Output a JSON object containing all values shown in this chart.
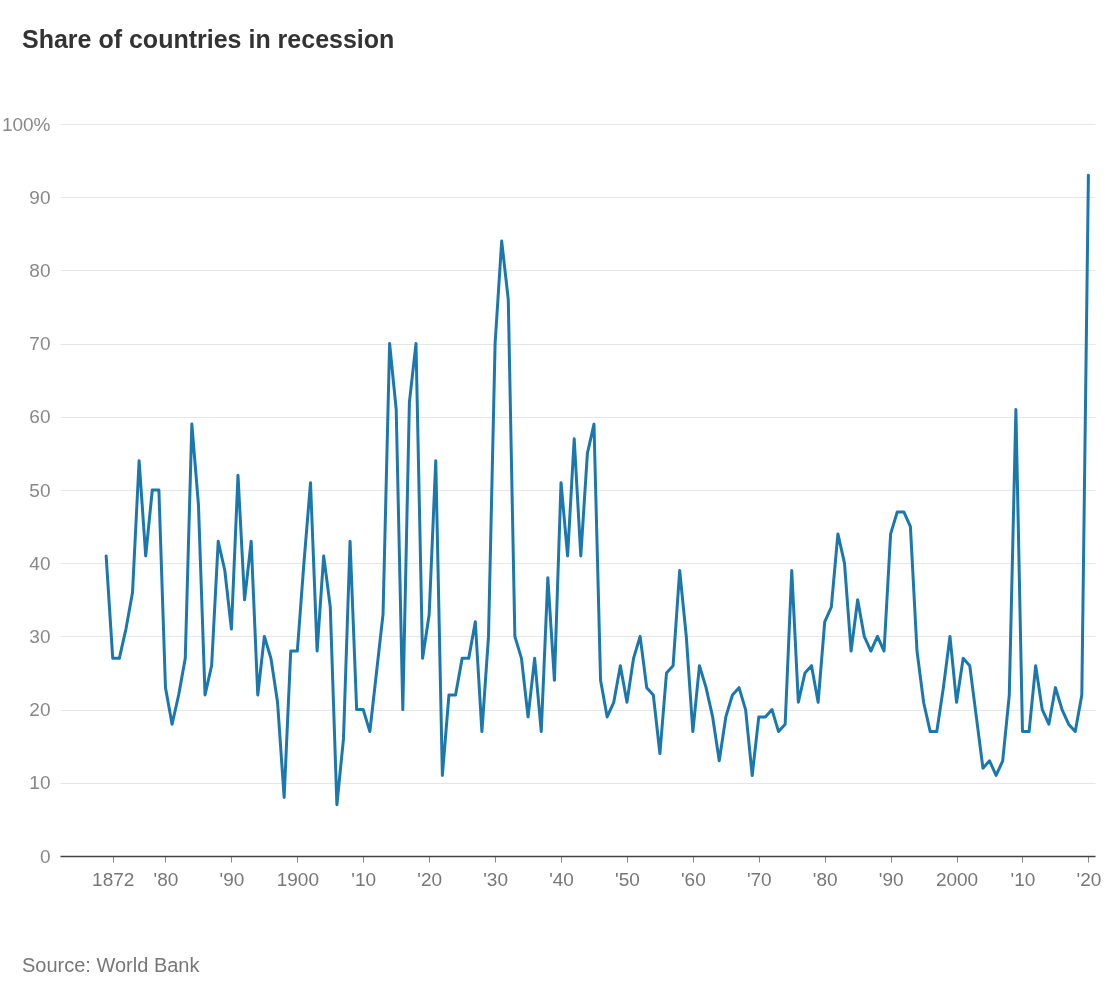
{
  "chart_data": {
    "type": "line",
    "title": "Share of countries in recession",
    "x": [
      1871,
      1872,
      1873,
      1874,
      1875,
      1876,
      1877,
      1878,
      1879,
      1880,
      1881,
      1882,
      1883,
      1884,
      1885,
      1886,
      1887,
      1888,
      1889,
      1890,
      1891,
      1892,
      1893,
      1894,
      1895,
      1896,
      1897,
      1898,
      1899,
      1900,
      1901,
      1902,
      1903,
      1904,
      1905,
      1906,
      1907,
      1908,
      1909,
      1910,
      1911,
      1912,
      1913,
      1914,
      1915,
      1916,
      1917,
      1918,
      1919,
      1920,
      1921,
      1922,
      1923,
      1924,
      1925,
      1926,
      1927,
      1928,
      1929,
      1930,
      1931,
      1932,
      1933,
      1934,
      1935,
      1936,
      1937,
      1938,
      1939,
      1940,
      1941,
      1942,
      1943,
      1944,
      1945,
      1946,
      1947,
      1948,
      1949,
      1950,
      1951,
      1952,
      1953,
      1954,
      1955,
      1956,
      1957,
      1958,
      1959,
      1960,
      1961,
      1962,
      1963,
      1964,
      1965,
      1966,
      1967,
      1968,
      1969,
      1970,
      1971,
      1972,
      1973,
      1974,
      1975,
      1976,
      1977,
      1978,
      1979,
      1980,
      1981,
      1982,
      1983,
      1984,
      1985,
      1986,
      1987,
      1988,
      1989,
      1990,
      1991,
      1992,
      1993,
      1994,
      1995,
      1996,
      1997,
      1998,
      1999,
      2000,
      2001,
      2002,
      2003,
      2004,
      2005,
      2006,
      2007,
      2008,
      2009,
      2010,
      2011,
      2012,
      2013,
      2014,
      2015,
      2016,
      2017,
      2018,
      2019,
      2020
    ],
    "series": [
      {
        "color": "#1b78ad",
        "values": [
          41,
          27,
          27,
          31,
          36,
          54,
          41,
          50,
          50,
          23,
          18,
          22,
          27,
          59,
          48,
          22,
          26,
          43,
          39,
          31,
          52,
          35,
          43,
          22,
          30,
          27,
          21,
          8,
          28,
          28,
          40,
          51,
          28,
          41,
          34,
          7,
          16,
          43,
          20,
          20,
          17,
          25,
          33,
          70,
          61,
          20,
          62,
          70,
          27,
          33,
          54,
          11,
          22,
          22,
          27,
          27,
          32,
          17,
          30,
          70,
          84,
          76,
          30,
          27,
          19,
          27,
          17,
          38,
          24,
          51,
          41,
          57,
          41,
          55,
          59,
          24,
          19,
          21,
          26,
          21,
          27,
          30,
          23,
          22,
          14,
          25,
          26,
          39,
          30,
          17,
          26,
          23,
          19,
          13,
          19,
          22,
          23,
          20,
          11,
          19,
          19,
          20,
          17,
          18,
          39,
          21,
          25,
          26,
          21,
          32,
          34,
          44,
          40,
          28,
          35,
          30,
          28,
          30,
          28,
          44,
          47,
          47,
          45,
          28,
          21,
          17,
          17,
          23,
          30,
          21,
          27,
          26,
          19,
          12,
          13,
          11,
          13,
          22,
          61,
          17,
          17,
          26,
          20,
          18,
          23,
          20,
          18,
          17,
          22,
          93
        ]
      }
    ],
    "xlim": [
      1864,
      2021
    ],
    "xticks": [
      1872,
      {
        "value": 1880,
        "label": "'80"
      },
      {
        "value": 1890,
        "label": "'90"
      },
      1900,
      {
        "value": 1910,
        "label": "'10"
      },
      {
        "value": 1920,
        "label": "'20"
      },
      {
        "value": 1930,
        "label": "'30"
      },
      {
        "value": 1940,
        "label": "'40"
      },
      {
        "value": 1950,
        "label": "'50"
      },
      {
        "value": 1960,
        "label": "'60"
      },
      {
        "value": 1970,
        "label": "'70"
      },
      {
        "value": 1980,
        "label": "'80"
      },
      {
        "value": 1990,
        "label": "'90"
      },
      2000,
      {
        "value": 2010,
        "label": "'10"
      },
      {
        "value": 2020,
        "label": "'20"
      }
    ],
    "ylim": [
      0,
      100
    ],
    "yticks": [
      0,
      10,
      20,
      30,
      40,
      50,
      60,
      70,
      80,
      90,
      {
        "value": 100,
        "label": "100%"
      }
    ],
    "grid": "y",
    "annotations": [
      "Source: World Bank"
    ]
  }
}
